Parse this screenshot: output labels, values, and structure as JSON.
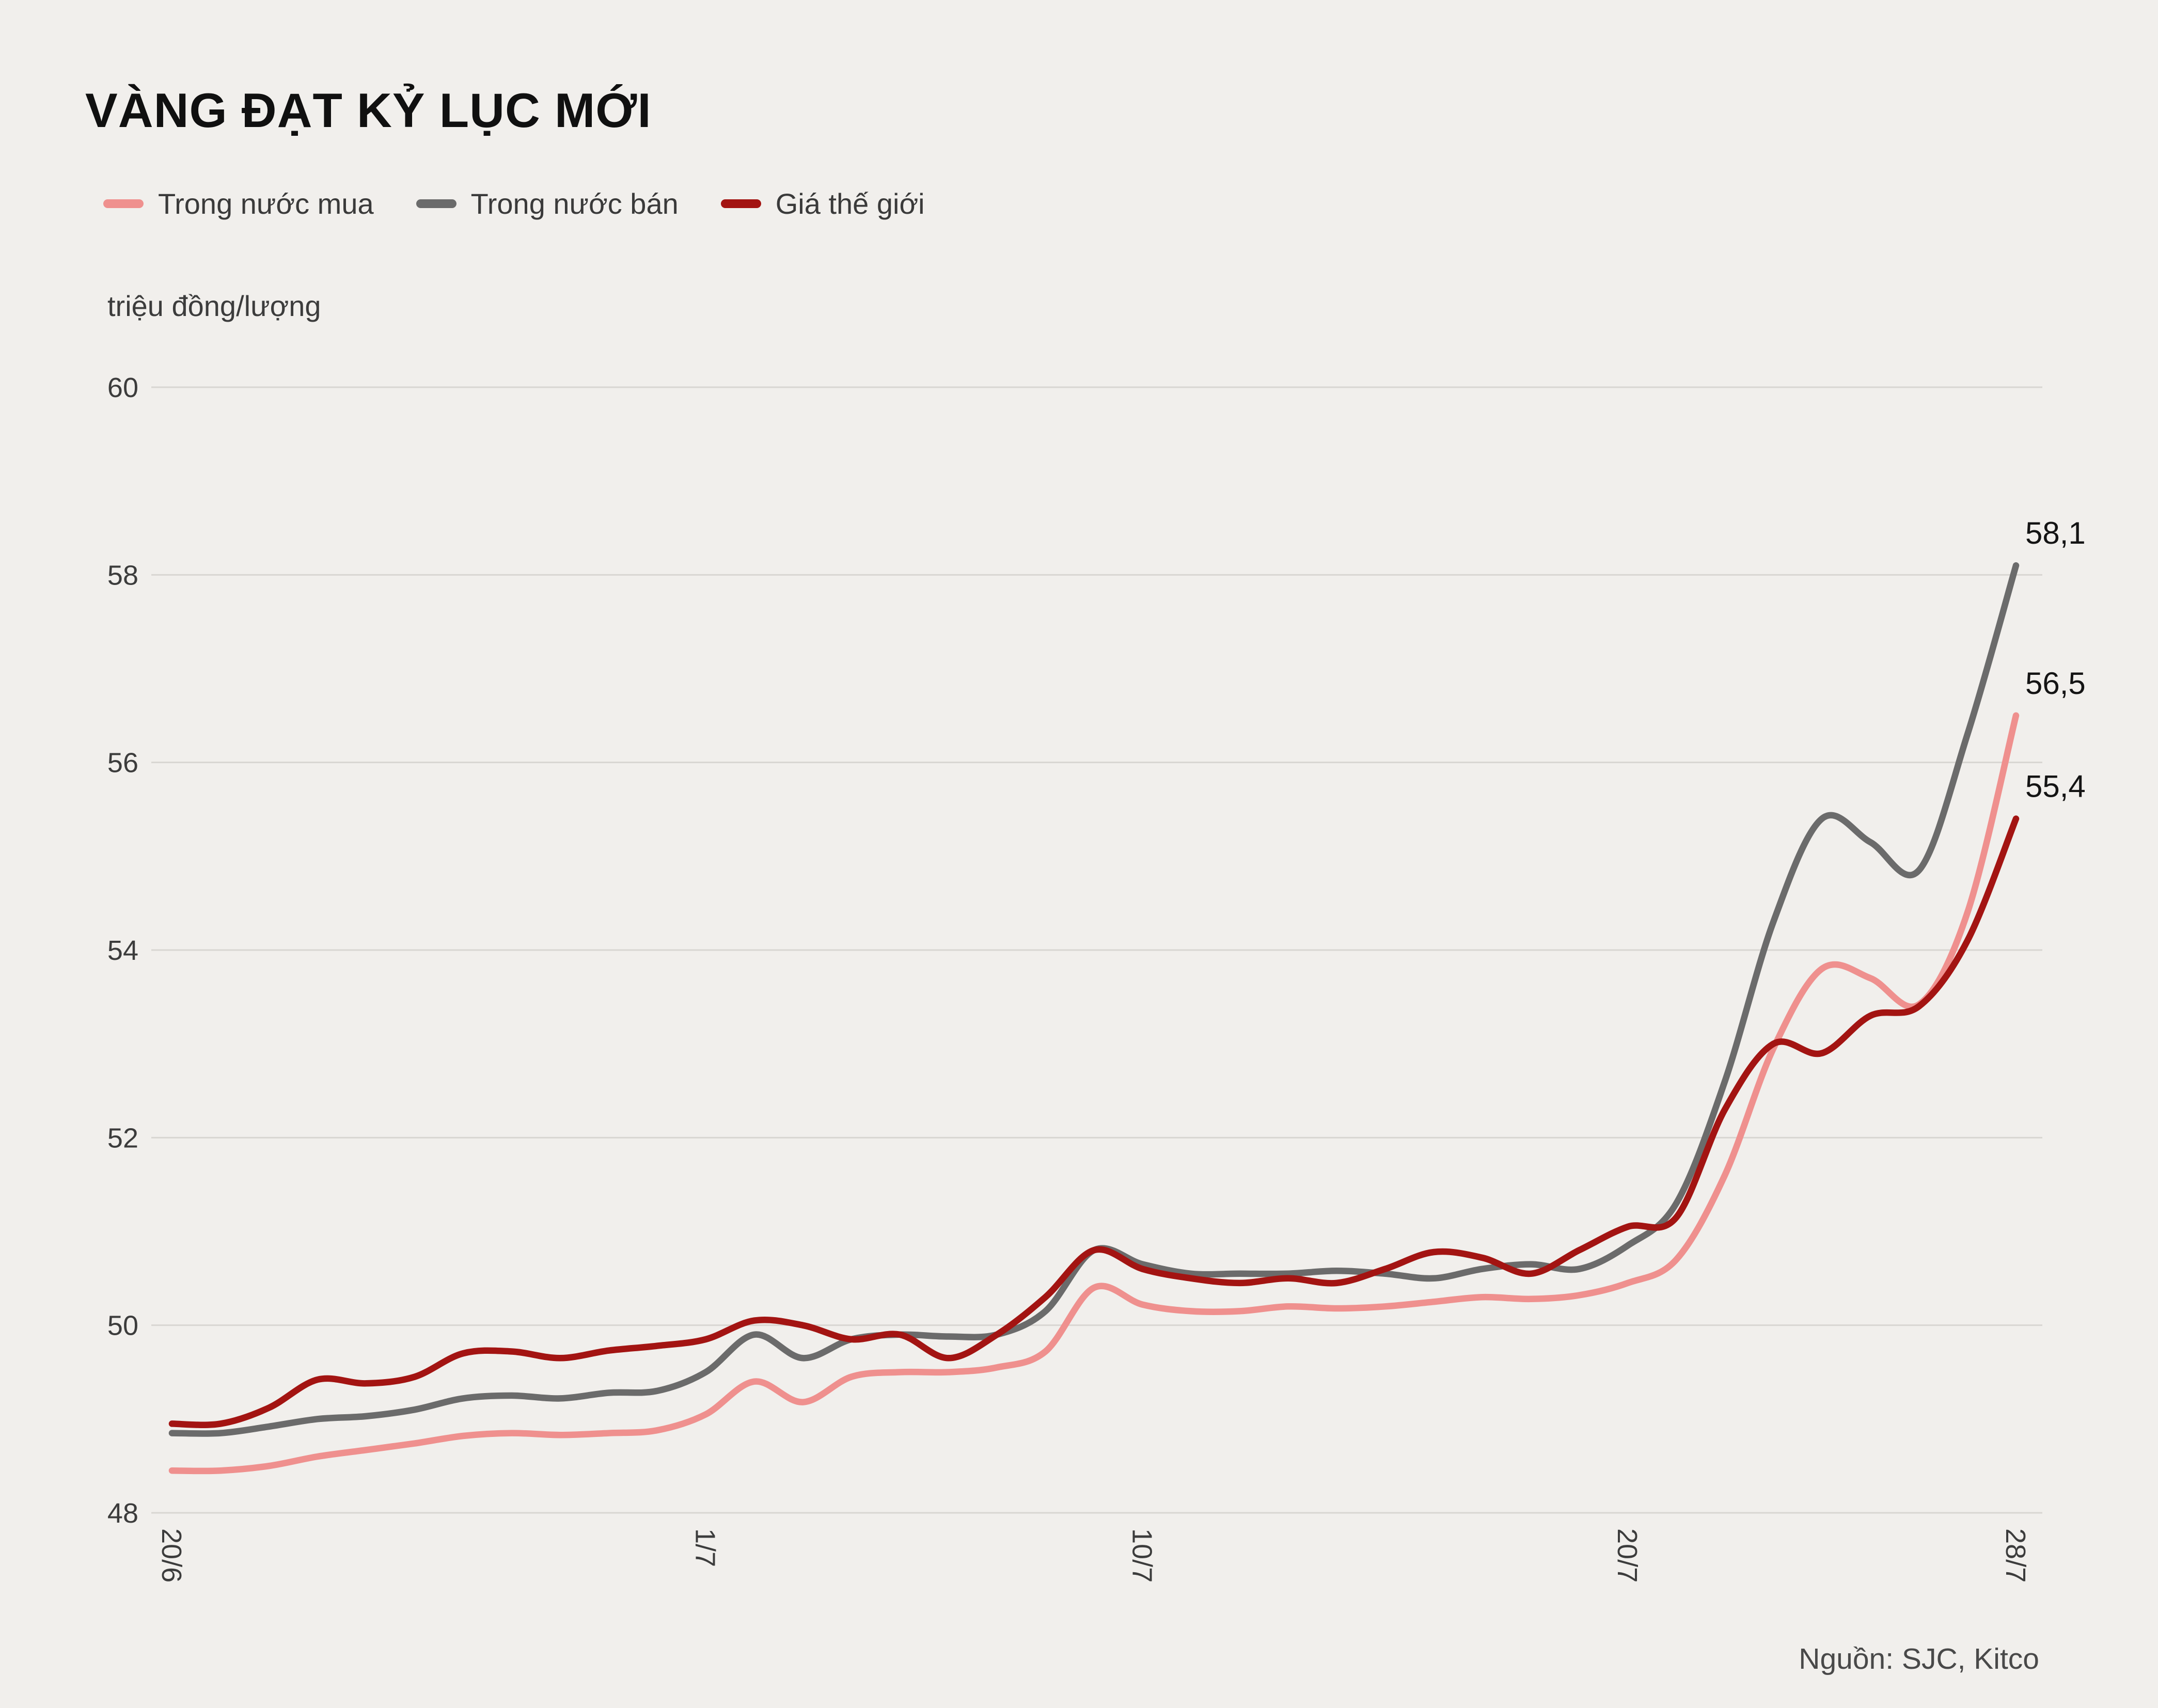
{
  "title": "VÀNG ĐẠT KỶ LỤC MỚI",
  "unit_label": "triệu đồng/lượng",
  "source": "Nguồn: SJC, Kitco",
  "colors": {
    "background": "#f1efec",
    "grid": "#d8d6d2",
    "axis_text": "#3c3c3c",
    "title_text": "#101010",
    "end_label_text": "#141414",
    "buy": "#ef908e",
    "sell": "#6b6b6b",
    "world": "#a31412"
  },
  "chart_data": {
    "type": "line",
    "title": "VÀNG ĐẠT KỶ LỤC MỚI",
    "ylabel": "triệu đồng/lượng",
    "ylim": [
      48,
      60
    ],
    "y_ticks": [
      48,
      50,
      52,
      54,
      56,
      58,
      60
    ],
    "x_tick_labels": [
      "20/6",
      "1/7",
      "10/7",
      "20/7",
      "28/7"
    ],
    "x_tick_days": [
      0,
      11,
      20,
      30,
      38
    ],
    "x_max_day": 38,
    "grid": "horizontal",
    "legend_position": "top-left",
    "series": [
      {
        "name": "Trong nước mua",
        "color": "#ef908e",
        "end_label": "56,5",
        "end_value": 56.5,
        "values": [
          48.45,
          48.45,
          48.5,
          48.6,
          48.67,
          48.74,
          48.82,
          48.85,
          48.83,
          48.85,
          48.88,
          49.05,
          49.4,
          49.18,
          49.45,
          49.5,
          49.5,
          49.55,
          49.72,
          50.4,
          50.22,
          50.15,
          50.15,
          50.2,
          50.18,
          50.2,
          50.25,
          50.3,
          50.28,
          50.32,
          50.45,
          50.7,
          51.6,
          52.95,
          53.8,
          53.7,
          53.42,
          54.4,
          56.5
        ]
      },
      {
        "name": "Trong nước bán",
        "color": "#6b6b6b",
        "end_label": "58,1",
        "end_value": 58.1,
        "values": [
          48.85,
          48.85,
          48.92,
          49.0,
          49.03,
          49.1,
          49.22,
          49.25,
          49.22,
          49.28,
          49.3,
          49.5,
          49.9,
          49.65,
          49.85,
          49.9,
          49.88,
          49.9,
          50.15,
          50.8,
          50.65,
          50.55,
          50.55,
          50.55,
          50.58,
          50.55,
          50.5,
          50.6,
          50.65,
          50.6,
          50.85,
          51.3,
          52.6,
          54.3,
          55.4,
          55.15,
          54.85,
          56.3,
          58.1
        ]
      },
      {
        "name": "Giá thế giới",
        "color": "#a31412",
        "end_label": "55,4",
        "end_value": 55.4,
        "values": [
          48.95,
          48.95,
          49.12,
          49.42,
          49.38,
          49.45,
          49.7,
          49.72,
          49.65,
          49.73,
          49.78,
          49.85,
          50.05,
          50.0,
          49.85,
          49.9,
          49.65,
          49.9,
          50.3,
          50.8,
          50.6,
          50.5,
          50.45,
          50.5,
          50.45,
          50.6,
          50.78,
          50.72,
          50.55,
          50.8,
          51.05,
          51.15,
          52.3,
          53.0,
          52.9,
          53.3,
          53.4,
          54.1,
          55.4
        ]
      }
    ]
  }
}
